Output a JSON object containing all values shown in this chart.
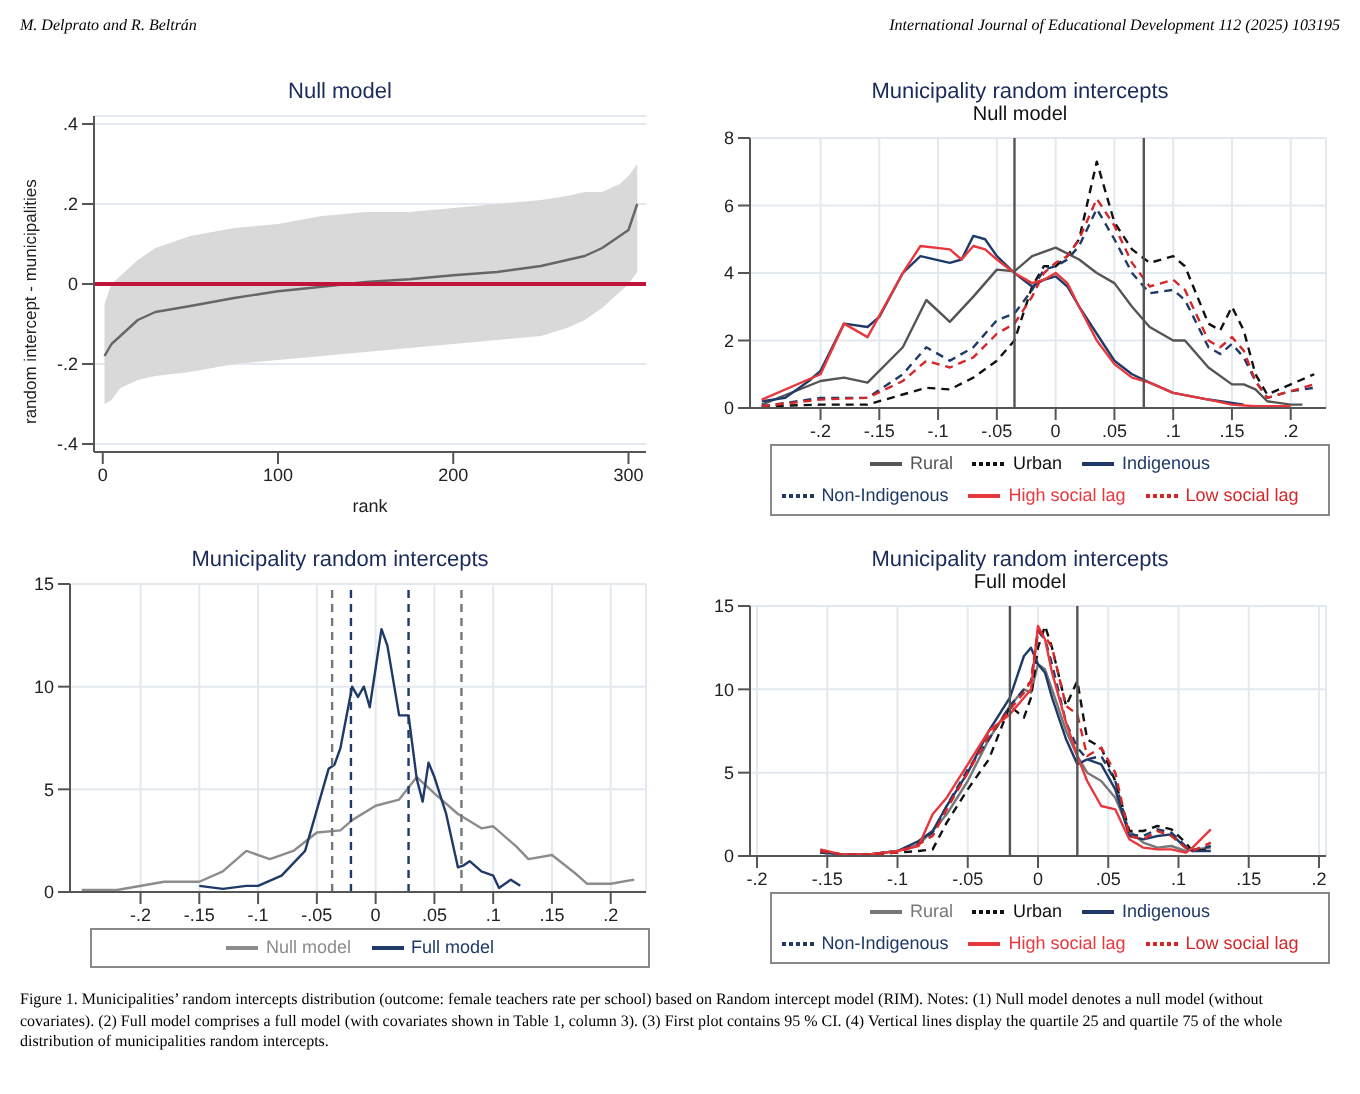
{
  "chart_data": [
    {
      "type": "line",
      "title": "Null model",
      "xlabel": "rank",
      "ylabel": "random intercept - municipalities",
      "annotations": [
        "M. Delprato and R. Beltrán",
        "International Journal of Educational Development 112 (2025) 103195"
      ],
      "x": [
        1,
        5,
        10,
        20,
        30,
        50,
        75,
        100,
        125,
        150,
        175,
        200,
        225,
        250,
        265,
        275,
        285,
        295,
        300,
        305
      ],
      "series": [
        {
          "color": "#666666",
          "values": [
            -0.18,
            -0.15,
            -0.13,
            -0.09,
            -0.07,
            -0.055,
            -0.035,
            -0.018,
            -0.007,
            0.005,
            0.012,
            0.022,
            0.03,
            0.045,
            0.06,
            0.07,
            0.09,
            0.12,
            0.135,
            0.2
          ],
          "lower": [
            -0.3,
            -0.29,
            -0.26,
            -0.24,
            -0.23,
            -0.22,
            -0.2,
            -0.19,
            -0.18,
            -0.17,
            -0.16,
            -0.15,
            -0.14,
            -0.13,
            -0.11,
            -0.09,
            -0.06,
            -0.02,
            0,
            0.03
          ],
          "upper": [
            -0.05,
            0,
            0.02,
            0.06,
            0.09,
            0.12,
            0.14,
            0.15,
            0.17,
            0.18,
            0.18,
            0.19,
            0.2,
            0.21,
            0.22,
            0.23,
            0.23,
            0.25,
            0.27,
            0.3
          ]
        }
      ],
      "xlim": [
        -5,
        310
      ],
      "xticks": [
        0,
        100,
        200,
        300
      ],
      "ylim": [
        -0.42,
        0.42
      ],
      "yticks": [
        {
          "value": -0.4,
          "label": "-.4"
        },
        {
          "value": -0.2,
          "label": "-.2"
        },
        0,
        {
          "value": 0.2,
          "label": ".2"
        },
        {
          "value": 0.4,
          "label": ".4"
        }
      ],
      "ref_lines": [
        {
          "axis": "y",
          "value": 0,
          "color": "#c0143c"
        }
      ],
      "grid": "y",
      "marker": "none"
    },
    {
      "type": "line",
      "title": "Municipality random intercepts",
      "subtitle": "Null model",
      "legend": "bottom",
      "series": [
        {
          "name": "Rural",
          "color": "#555555",
          "line_style": "solid",
          "x": [
            -0.25,
            -0.2,
            -0.18,
            -0.16,
            -0.13,
            -0.11,
            -0.09,
            -0.07,
            -0.05,
            -0.035,
            -0.02,
            0,
            0.02,
            0.035,
            0.05,
            0.065,
            0.08,
            0.1,
            0.11,
            0.13,
            0.15,
            0.16,
            0.17,
            0.18,
            0.2,
            0.21
          ],
          "values": [
            0.1,
            0.8,
            0.9,
            0.75,
            1.8,
            3.2,
            2.55,
            3.3,
            4.1,
            4.05,
            4.5,
            4.75,
            4.4,
            4,
            3.7,
            3,
            2.4,
            2,
            2,
            1.2,
            0.7,
            0.7,
            0.55,
            0.2,
            0.1,
            0.1
          ]
        },
        {
          "name": "Urban",
          "color": "#111111",
          "line_style": "dashed",
          "x": [
            -0.25,
            -0.2,
            -0.16,
            -0.13,
            -0.11,
            -0.09,
            -0.07,
            -0.05,
            -0.035,
            -0.02,
            -0.01,
            0,
            0.01,
            0.02,
            0.035,
            0.05,
            0.065,
            0.08,
            0.1,
            0.11,
            0.13,
            0.14,
            0.15,
            0.16,
            0.17,
            0.18,
            0.2,
            0.22
          ],
          "values": [
            0.05,
            0.1,
            0.1,
            0.4,
            0.6,
            0.55,
            0.9,
            1.4,
            2,
            3.6,
            4.2,
            4.2,
            4.5,
            5,
            7.3,
            5.5,
            4.7,
            4.3,
            4.5,
            4.2,
            2.5,
            2.3,
            3,
            2.3,
            1,
            0.4,
            0.7,
            1
          ]
        },
        {
          "name": "Indigenous",
          "color": "#1f3a68",
          "line_style": "solid",
          "x": [
            -0.25,
            -0.23,
            -0.21,
            -0.2,
            -0.18,
            -0.16,
            -0.15,
            -0.13,
            -0.115,
            -0.09,
            -0.08,
            -0.07,
            -0.06,
            -0.05,
            -0.035,
            -0.02,
            -0.01,
            0,
            0.01,
            0.02,
            0.035,
            0.05,
            0.065,
            0.08,
            0.1,
            0.13,
            0.15,
            0.16
          ],
          "values": [
            0.2,
            0.3,
            0.8,
            1.1,
            2.5,
            2.4,
            2.7,
            4,
            4.5,
            4.3,
            4.4,
            5.1,
            5,
            4.5,
            4,
            3.6,
            3.8,
            3.9,
            3.6,
            3,
            2.2,
            1.4,
            1,
            0.75,
            0.45,
            0.25,
            0.15,
            0.1
          ]
        },
        {
          "name": "Non-Indigenous",
          "color": "#1f3a68",
          "line_style": "dashed",
          "x": [
            -0.25,
            -0.2,
            -0.16,
            -0.13,
            -0.11,
            -0.09,
            -0.07,
            -0.05,
            -0.035,
            -0.02,
            -0.01,
            0,
            0.01,
            0.02,
            0.035,
            0.05,
            0.065,
            0.08,
            0.1,
            0.11,
            0.13,
            0.14,
            0.15,
            0.16,
            0.17,
            0.18,
            0.2,
            0.22
          ],
          "values": [
            0.05,
            0.3,
            0.3,
            1,
            1.8,
            1.4,
            1.8,
            2.6,
            2.8,
            3.5,
            4.1,
            4.2,
            4.4,
            4.8,
            5.9,
            5,
            4,
            3.4,
            3.5,
            3.2,
            1.8,
            1.6,
            1.9,
            1.5,
            0.8,
            0.3,
            0.5,
            0.6
          ]
        },
        {
          "name": "High social lag",
          "color": "#e8383d",
          "line_style": "solid",
          "x": [
            -0.25,
            -0.2,
            -0.18,
            -0.16,
            -0.13,
            -0.115,
            -0.09,
            -0.08,
            -0.07,
            -0.06,
            -0.05,
            -0.035,
            -0.02,
            -0.01,
            0,
            0.01,
            0.02,
            0.035,
            0.05,
            0.065,
            0.08,
            0.1,
            0.13,
            0.15,
            0.17,
            0.2
          ],
          "values": [
            0.25,
            1,
            2.5,
            2.1,
            4,
            4.8,
            4.7,
            4.4,
            4.8,
            4.7,
            4.4,
            4,
            3.7,
            3.8,
            4,
            3.7,
            3,
            2,
            1.3,
            0.9,
            0.75,
            0.45,
            0.25,
            0.1,
            0.05,
            0.05
          ]
        },
        {
          "name": "Low social lag",
          "color": "#d62728",
          "line_style": "dashed",
          "x": [
            -0.25,
            -0.2,
            -0.16,
            -0.13,
            -0.11,
            -0.09,
            -0.07,
            -0.05,
            -0.035,
            -0.02,
            -0.01,
            0,
            0.01,
            0.02,
            0.035,
            0.05,
            0.065,
            0.08,
            0.1,
            0.11,
            0.13,
            0.14,
            0.15,
            0.16,
            0.17,
            0.18,
            0.2,
            0.22
          ],
          "values": [
            0.05,
            0.25,
            0.3,
            0.8,
            1.4,
            1.2,
            1.5,
            2.2,
            2.5,
            3.3,
            4,
            4.3,
            4.5,
            5,
            6.2,
            5.4,
            4.3,
            3.6,
            3.8,
            3.5,
            2,
            1.8,
            2.1,
            1.7,
            0.8,
            0.3,
            0.5,
            0.7
          ]
        }
      ],
      "xlim": [
        -0.26,
        0.23
      ],
      "xticks": [
        {
          "value": -0.2,
          "label": "-.2"
        },
        {
          "value": -0.15,
          "label": "-.15"
        },
        {
          "value": -0.1,
          "label": "-.1"
        },
        {
          "value": -0.05,
          "label": "-.05"
        },
        0,
        {
          "value": 0.05,
          "label": ".05"
        },
        {
          "value": 0.1,
          "label": ".1"
        },
        {
          "value": 0.15,
          "label": ".15"
        },
        {
          "value": 0.2,
          "label": ".2"
        }
      ],
      "ylim": [
        0,
        8
      ],
      "yticks": [
        0,
        2,
        4,
        6,
        8
      ],
      "ref_lines": [
        {
          "axis": "x",
          "value": -0.035,
          "color": "#555555"
        },
        {
          "axis": "x",
          "value": 0.075,
          "color": "#555555"
        }
      ],
      "grid": true,
      "marker": "none"
    },
    {
      "type": "line",
      "title": "Municipality random intercepts",
      "legend": "bottom",
      "series": [
        {
          "name": "Null model",
          "color": "#8c8c8c",
          "x": [
            -0.25,
            -0.22,
            -0.18,
            -0.15,
            -0.13,
            -0.11,
            -0.09,
            -0.07,
            -0.05,
            -0.03,
            -0.02,
            0,
            0.02,
            0.035,
            0.05,
            0.07,
            0.09,
            0.1,
            0.12,
            0.13,
            0.15,
            0.17,
            0.18,
            0.2,
            0.22
          ],
          "values": [
            0.1,
            0.1,
            0.5,
            0.5,
            1,
            2,
            1.6,
            2,
            2.9,
            3,
            3.5,
            4.2,
            4.5,
            5.6,
            4.8,
            3.8,
            3.1,
            3.2,
            2.2,
            1.6,
            1.8,
            0.9,
            0.4,
            0.4,
            0.6
          ]
        },
        {
          "name": "Full model",
          "color": "#1f3a68",
          "x": [
            -0.15,
            -0.13,
            -0.11,
            -0.1,
            -0.08,
            -0.06,
            -0.05,
            -0.04,
            -0.035,
            -0.03,
            -0.02,
            -0.015,
            -0.01,
            -0.005,
            0.005,
            0.01,
            0.02,
            0.028,
            0.035,
            0.04,
            0.045,
            0.05,
            0.06,
            0.07,
            0.075,
            0.08,
            0.09,
            0.1,
            0.105,
            0.115,
            0.123
          ],
          "values": [
            0.3,
            0.15,
            0.3,
            0.3,
            0.8,
            2,
            4,
            6,
            6.2,
            7,
            10,
            9.5,
            10,
            9,
            12.8,
            12,
            8.6,
            8.6,
            5.5,
            4.4,
            6.3,
            5.6,
            3.8,
            1.2,
            1.3,
            1.5,
            1,
            0.8,
            0.2,
            0.6,
            0.3
          ]
        }
      ],
      "xlim": [
        -0.26,
        0.23
      ],
      "xticks": [
        {
          "value": -0.2,
          "label": "-.2"
        },
        {
          "value": -0.15,
          "label": "-.15"
        },
        {
          "value": -0.1,
          "label": "-.1"
        },
        {
          "value": -0.05,
          "label": "-.05"
        },
        0,
        {
          "value": 0.05,
          "label": ".05"
        },
        {
          "value": 0.1,
          "label": ".1"
        },
        {
          "value": 0.15,
          "label": ".15"
        },
        {
          "value": 0.2,
          "label": ".2"
        }
      ],
      "ylim": [
        0,
        15
      ],
      "yticks": [
        0,
        5,
        10,
        15
      ],
      "ref_lines": [
        {
          "axis": "x",
          "value": -0.037,
          "color": "#777777",
          "line_style": "dashed"
        },
        {
          "axis": "x",
          "value": -0.021,
          "color": "#1f3a68",
          "line_style": "dashed"
        },
        {
          "axis": "x",
          "value": 0.028,
          "color": "#1f3a68",
          "line_style": "dashed"
        },
        {
          "axis": "x",
          "value": 0.073,
          "color": "#777777",
          "line_style": "dashed"
        }
      ],
      "grid": true,
      "marker": "none"
    },
    {
      "type": "line",
      "title": "Municipality random intercepts",
      "subtitle": "Full model",
      "legend": "bottom",
      "annotations": [
        "Figure 1.  Municipalities’ random intercepts distribution (outcome: female teachers rate per school) based on Random intercept model (RIM). Notes: (1) Null model denotes a null model (without covariates). (2) Full model comprises a full model (with covariates shown in Table 1, column 3). (3) First plot contains 95 % CI. (4) Vertical lines display the quartile 25 and quartile 75 of the whole distribution of municipalities random intercepts."
      ],
      "x": [
        -0.155,
        -0.14,
        -0.12,
        -0.1,
        -0.085,
        -0.075,
        -0.065,
        -0.05,
        -0.035,
        -0.02,
        -0.01,
        -0.005,
        0,
        0.005,
        0.01,
        0.02,
        0.028,
        0.035,
        0.045,
        0.055,
        0.065,
        0.075,
        0.085,
        0.095,
        0.105,
        0.11,
        0.123
      ],
      "series": [
        {
          "name": "Rural",
          "color": "#777777",
          "line_style": "solid",
          "values": [
            0.3,
            0.1,
            0.1,
            0.3,
            0.7,
            1.5,
            2.5,
            4.5,
            7,
            9,
            10,
            9.8,
            11.5,
            11.2,
            10,
            7.5,
            6,
            5,
            4.5,
            3.5,
            1.5,
            0.8,
            0.5,
            0.6,
            0.3,
            0.4,
            0.5
          ]
        },
        {
          "name": "Urban",
          "color": "#111111",
          "line_style": "dashed",
          "values": [
            0.2,
            0.1,
            0.1,
            0.2,
            0.3,
            0.4,
            2,
            4,
            5.8,
            9,
            8.3,
            9.5,
            12.5,
            13.8,
            12.5,
            9,
            10.5,
            7,
            6.5,
            4.5,
            1.5,
            1.5,
            1.8,
            1.6,
            0.8,
            0.3,
            0.4
          ]
        },
        {
          "name": "Indigenous",
          "color": "#1f3a68",
          "line_style": "solid",
          "values": [
            0.2,
            0.1,
            0.1,
            0.3,
            0.9,
            1.5,
            3,
            5,
            7.5,
            9.5,
            12,
            12.5,
            11.5,
            11,
            9.5,
            7,
            5.5,
            5.8,
            5.5,
            4,
            1.2,
            1,
            1.2,
            1.3,
            0.5,
            0.3,
            0.3
          ]
        },
        {
          "name": "Non-Indigenous",
          "color": "#1f3a68",
          "line_style": "dashed",
          "values": [
            0.3,
            0.1,
            0.1,
            0.3,
            0.8,
            1.4,
            3,
            5.2,
            7,
            9,
            10,
            10.5,
            13.5,
            13,
            11.5,
            8,
            6.5,
            5.8,
            6,
            4.5,
            1.3,
            1.2,
            1.6,
            1.4,
            0.6,
            0.3,
            0.6
          ]
        },
        {
          "name": "High social lag",
          "color": "#e8383d",
          "line_style": "solid",
          "values": [
            0.4,
            0.1,
            0.1,
            0.3,
            0.6,
            2.5,
            3.5,
            5.5,
            7.5,
            8.5,
            9.5,
            10,
            13.8,
            13,
            11,
            8,
            6,
            4.5,
            3,
            2.8,
            1,
            0.5,
            0.4,
            0.4,
            0.2,
            0.5,
            1.6
          ]
        },
        {
          "name": "Low social lag",
          "color": "#d62728",
          "line_style": "dashed",
          "values": [
            0.3,
            0.1,
            0.1,
            0.2,
            0.7,
            1.2,
            2.8,
            5,
            7.2,
            8.8,
            9.8,
            10.5,
            13.5,
            13.2,
            12.5,
            9,
            8.5,
            6,
            6.5,
            5,
            1.2,
            1,
            1.5,
            1.2,
            0.5,
            0.3,
            0.8
          ]
        }
      ],
      "xlim": [
        -0.205,
        0.205
      ],
      "xticks": [
        {
          "value": -0.2,
          "label": "-.2"
        },
        {
          "value": -0.15,
          "label": "-.15"
        },
        {
          "value": -0.1,
          "label": "-.1"
        },
        {
          "value": -0.05,
          "label": "-.05"
        },
        0,
        {
          "value": 0.05,
          "label": ".05"
        },
        {
          "value": 0.1,
          "label": ".1"
        },
        {
          "value": 0.15,
          "label": ".15"
        },
        {
          "value": 0.2,
          "label": ".2"
        }
      ],
      "ylim": [
        0,
        15
      ],
      "yticks": [
        0,
        5,
        10,
        15
      ],
      "ref_lines": [
        {
          "axis": "x",
          "value": -0.02,
          "color": "#555555"
        },
        {
          "axis": "x",
          "value": 0.028,
          "color": "#555555"
        }
      ],
      "grid": true,
      "marker": "none"
    }
  ]
}
